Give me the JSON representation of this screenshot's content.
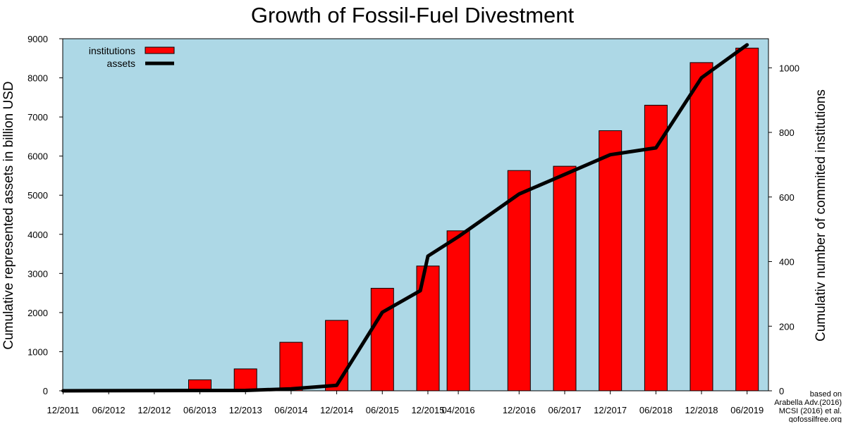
{
  "chart_data": {
    "type": "bar+line",
    "title": "Growth of Fossil-Fuel Divestment",
    "ylabel_left": "Cumulative represented assets in billion USD",
    "ylabel_right": "Cumulativ number of commited institutions",
    "ylim_left": [
      0,
      9000
    ],
    "ylim_right": [
      0,
      1090
    ],
    "yticks_left": [
      0,
      1000,
      2000,
      3000,
      4000,
      5000,
      6000,
      7000,
      8000,
      9000
    ],
    "yticks_right": [
      0,
      200,
      400,
      600,
      800,
      1000
    ],
    "grid": false,
    "legend_placement": "top-left",
    "x_tick_labels": [
      "12/2011",
      "06/2012",
      "12/2012",
      "06/2013",
      "12/2013",
      "06/2014",
      "12/2014",
      "06/2015",
      "12/2015",
      "04/2016",
      "12/2016",
      "06/2017",
      "12/2017",
      "06/2018",
      "12/2018",
      "06/2019"
    ],
    "series": [
      {
        "name": "institutions",
        "kind": "bar",
        "axis": "left",
        "color": "#ff0000",
        "points": [
          {
            "x": "06/2013",
            "y": 280
          },
          {
            "x": "12/2013",
            "y": 560
          },
          {
            "x": "06/2014",
            "y": 1240
          },
          {
            "x": "12/2014",
            "y": 1800
          },
          {
            "x": "06/2015",
            "y": 2620
          },
          {
            "x": "12/2015",
            "y": 3190
          },
          {
            "x": "04/2016",
            "y": 4090
          },
          {
            "x": "12/2016",
            "y": 5630
          },
          {
            "x": "06/2017",
            "y": 5740
          },
          {
            "x": "12/2017",
            "y": 6650
          },
          {
            "x": "06/2018",
            "y": 7300
          },
          {
            "x": "12/2018",
            "y": 8390
          },
          {
            "x": "06/2019",
            "y": 8760
          }
        ]
      },
      {
        "name": "assets",
        "kind": "line",
        "axis": "right",
        "color": "#000000",
        "points": [
          {
            "x": "12/2011",
            "y": 0
          },
          {
            "x": "12/2013",
            "y": 1
          },
          {
            "x": "06/2014",
            "y": 6
          },
          {
            "x": "12/2014",
            "y": 17
          },
          {
            "x": "06/2015",
            "y": 243
          },
          {
            "x": "11/2015",
            "y": 310
          },
          {
            "x": "12/2015",
            "y": 417
          },
          {
            "x": "04/2016",
            "y": 477
          },
          {
            "x": "12/2016",
            "y": 609
          },
          {
            "x": "06/2017",
            "y": 670
          },
          {
            "x": "12/2017",
            "y": 731
          },
          {
            "x": "06/2018",
            "y": 752
          },
          {
            "x": "12/2018",
            "y": 969
          },
          {
            "x": "06/2019",
            "y": 1071
          }
        ]
      }
    ],
    "source_lines": [
      "based on",
      "Arabella Adv.(2016)",
      "MCSI (2016) et al.",
      "gofossilfree.org"
    ]
  }
}
